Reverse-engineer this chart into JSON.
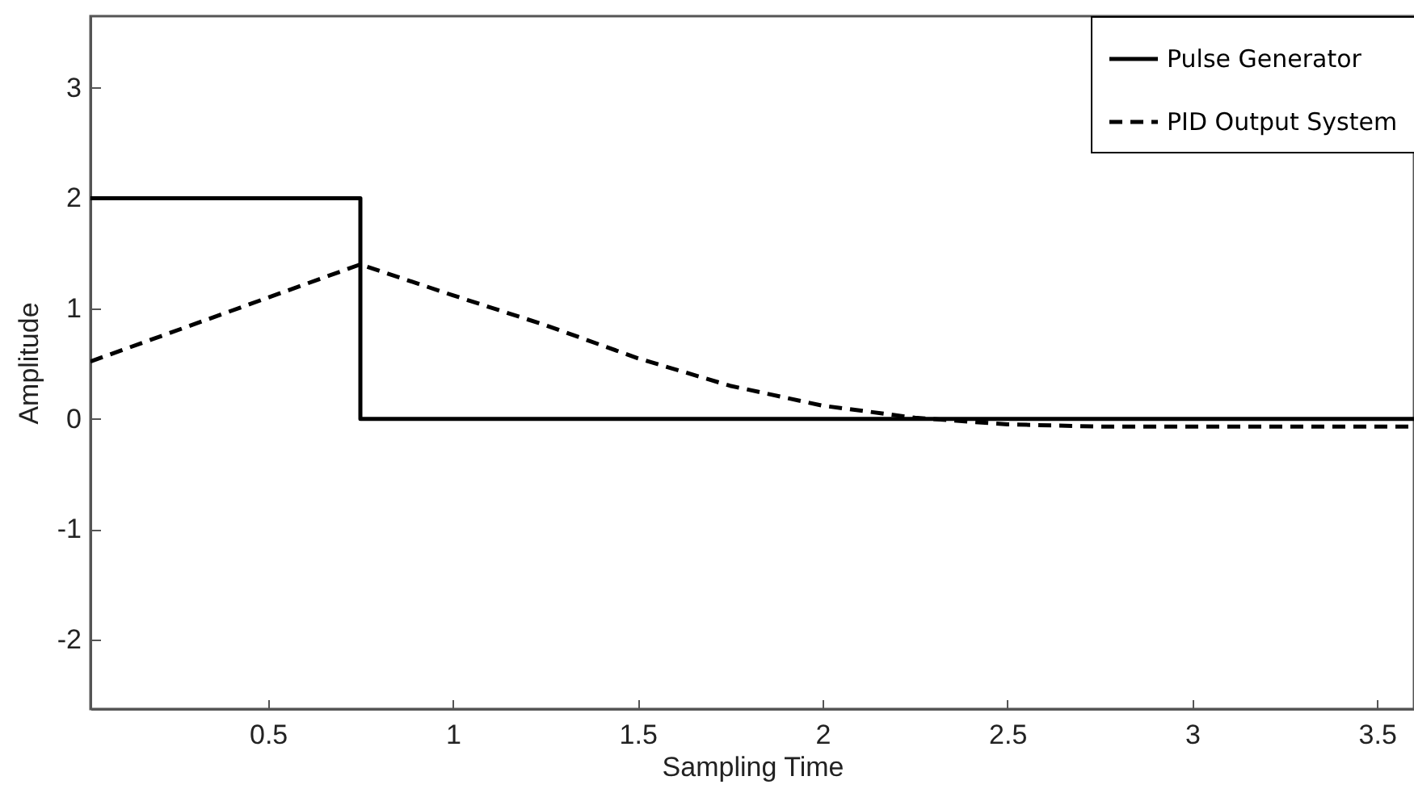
{
  "chart_data": {
    "type": "line",
    "xlabel": "Sampling Time",
    "ylabel": "Amplitude",
    "xlim": [
      0.02,
      3.6
    ],
    "ylim": [
      -2.63,
      3.65
    ],
    "xticks": [
      0.5,
      1,
      1.5,
      2,
      2.5,
      3,
      3.5
    ],
    "yticks": [
      -2,
      -1,
      0,
      1,
      2,
      3
    ],
    "grid": false,
    "legend": "top right",
    "series": [
      {
        "name": "Pulse Generator",
        "type": "step",
        "color": "#000000",
        "line_style": "solid",
        "x": [
          0.02,
          0.75,
          3.6
        ],
        "values": [
          2,
          0,
          0
        ]
      },
      {
        "name": "PID Output System",
        "type": "line",
        "color": "#000000",
        "line_style": "dashed",
        "x": [
          0.02,
          0.75,
          1.0,
          1.25,
          1.5,
          1.75,
          2.0,
          2.25,
          2.5,
          2.75,
          3.0,
          3.6
        ],
        "values": [
          0.52,
          1.4,
          1.12,
          0.85,
          0.55,
          0.3,
          0.12,
          0.01,
          -0.05,
          -0.07,
          -0.07,
          -0.07
        ]
      }
    ]
  }
}
